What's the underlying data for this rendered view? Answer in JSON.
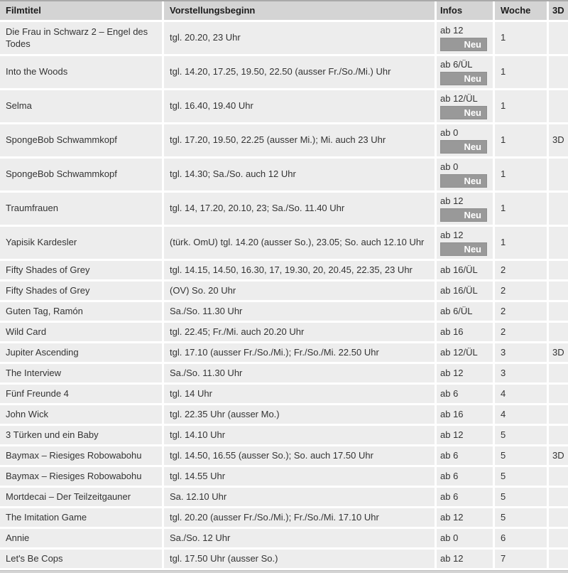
{
  "table": {
    "columns": [
      "Filmtitel",
      "Vorstellungsbeginn",
      "Infos",
      "Woche",
      "3D"
    ],
    "neu_badge_label": "Neu",
    "rows": [
      {
        "title": "Die Frau in Schwarz 2 – Engel des Todes",
        "times": "tgl. 20.20, 23 Uhr",
        "info": "ab 12",
        "neu": true,
        "week": "1",
        "d3": ""
      },
      {
        "title": "Into the Woods",
        "times": "tgl. 14.20, 17.25, 19.50, 22.50 (ausser Fr./So./Mi.) Uhr",
        "info": "ab 6/ÜL",
        "neu": true,
        "week": "1",
        "d3": ""
      },
      {
        "title": "Selma",
        "times": "tgl. 16.40, 19.40 Uhr",
        "info": "ab 12/ÜL",
        "neu": true,
        "week": "1",
        "d3": ""
      },
      {
        "title": "SpongeBob Schwammkopf",
        "times": "tgl. 17.20, 19.50, 22.25 (ausser Mi.); Mi. auch 23 Uhr",
        "info": "ab 0",
        "neu": true,
        "week": "1",
        "d3": "3D"
      },
      {
        "title": "SpongeBob Schwammkopf",
        "times": "tgl. 14.30; Sa./So. auch 12 Uhr",
        "info": "ab 0",
        "neu": true,
        "week": "1",
        "d3": ""
      },
      {
        "title": "Traumfrauen",
        "times": "tgl. 14, 17.20, 20.10, 23; Sa./So. 11.40 Uhr",
        "info": "ab 12",
        "neu": true,
        "week": "1",
        "d3": ""
      },
      {
        "title": "Yapisik Kardesler",
        "times": "(türk. OmU) tgl. 14.20 (ausser So.), 23.05; So. auch 12.10 Uhr",
        "info": "ab 12",
        "neu": true,
        "week": "1",
        "d3": ""
      },
      {
        "title": "Fifty Shades of Grey",
        "times": "tgl. 14.15, 14.50, 16.30, 17, 19.30, 20, 20.45, 22.35, 23 Uhr",
        "info": "ab 16/ÜL",
        "neu": false,
        "week": "2",
        "d3": ""
      },
      {
        "title": "Fifty Shades of Grey",
        "times": "(OV) So. 20 Uhr",
        "info": "ab 16/ÜL",
        "neu": false,
        "week": "2",
        "d3": ""
      },
      {
        "title": "Guten Tag, Ramón",
        "times": "Sa./So. 11.30 Uhr",
        "info": "ab 6/ÜL",
        "neu": false,
        "week": "2",
        "d3": ""
      },
      {
        "title": "Wild Card",
        "times": "tgl. 22.45; Fr./Mi. auch 20.20 Uhr",
        "info": "ab 16",
        "neu": false,
        "week": "2",
        "d3": ""
      },
      {
        "title": "Jupiter Ascending",
        "times": "tgl. 17.10 (ausser Fr./So./Mi.); Fr./So./Mi. 22.50 Uhr",
        "info": "ab 12/ÜL",
        "neu": false,
        "week": "3",
        "d3": "3D"
      },
      {
        "title": "The Interview",
        "times": "Sa./So. 11.30 Uhr",
        "info": "ab 12",
        "neu": false,
        "week": "3",
        "d3": ""
      },
      {
        "title": "Fünf Freunde 4",
        "times": "tgl. 14 Uhr",
        "info": "ab 6",
        "neu": false,
        "week": "4",
        "d3": ""
      },
      {
        "title": "John Wick",
        "times": "tgl. 22.35 Uhr (ausser Mo.)",
        "info": "ab 16",
        "neu": false,
        "week": "4",
        "d3": ""
      },
      {
        "title": "3 Türken und ein Baby",
        "times": "tgl. 14.10 Uhr",
        "info": "ab 12",
        "neu": false,
        "week": "5",
        "d3": ""
      },
      {
        "title": "Baymax – Riesiges Robowabohu",
        "times": "tgl. 14.50, 16.55 (ausser So.); So. auch 17.50 Uhr",
        "info": "ab 6",
        "neu": false,
        "week": "5",
        "d3": "3D"
      },
      {
        "title": "Baymax – Riesiges Robowabohu",
        "times": "tgl. 14.55 Uhr",
        "info": "ab 6",
        "neu": false,
        "week": "5",
        "d3": ""
      },
      {
        "title": "Mortdecai – Der Teilzeitgauner",
        "times": "Sa. 12.10 Uhr",
        "info": "ab 6",
        "neu": false,
        "week": "5",
        "d3": ""
      },
      {
        "title": "The Imitation Game",
        "times": "tgl. 20.20 (ausser Fr./So./Mi.); Fr./So./Mi. 17.10 Uhr",
        "info": "ab 12",
        "neu": false,
        "week": "5",
        "d3": ""
      },
      {
        "title": "Annie",
        "times": "Sa./So. 12 Uhr",
        "info": "ab 0",
        "neu": false,
        "week": "6",
        "d3": ""
      },
      {
        "title": "Let's Be Cops",
        "times": "tgl. 17.50 Uhr (ausser So.)",
        "info": "ab 12",
        "neu": false,
        "week": "7",
        "d3": ""
      }
    ]
  },
  "colors": {
    "header_bg": "#d4d4d4",
    "row_bg": "#ededed",
    "badge_bg": "#999999",
    "badge_text": "#ffffff",
    "text": "#333333"
  }
}
